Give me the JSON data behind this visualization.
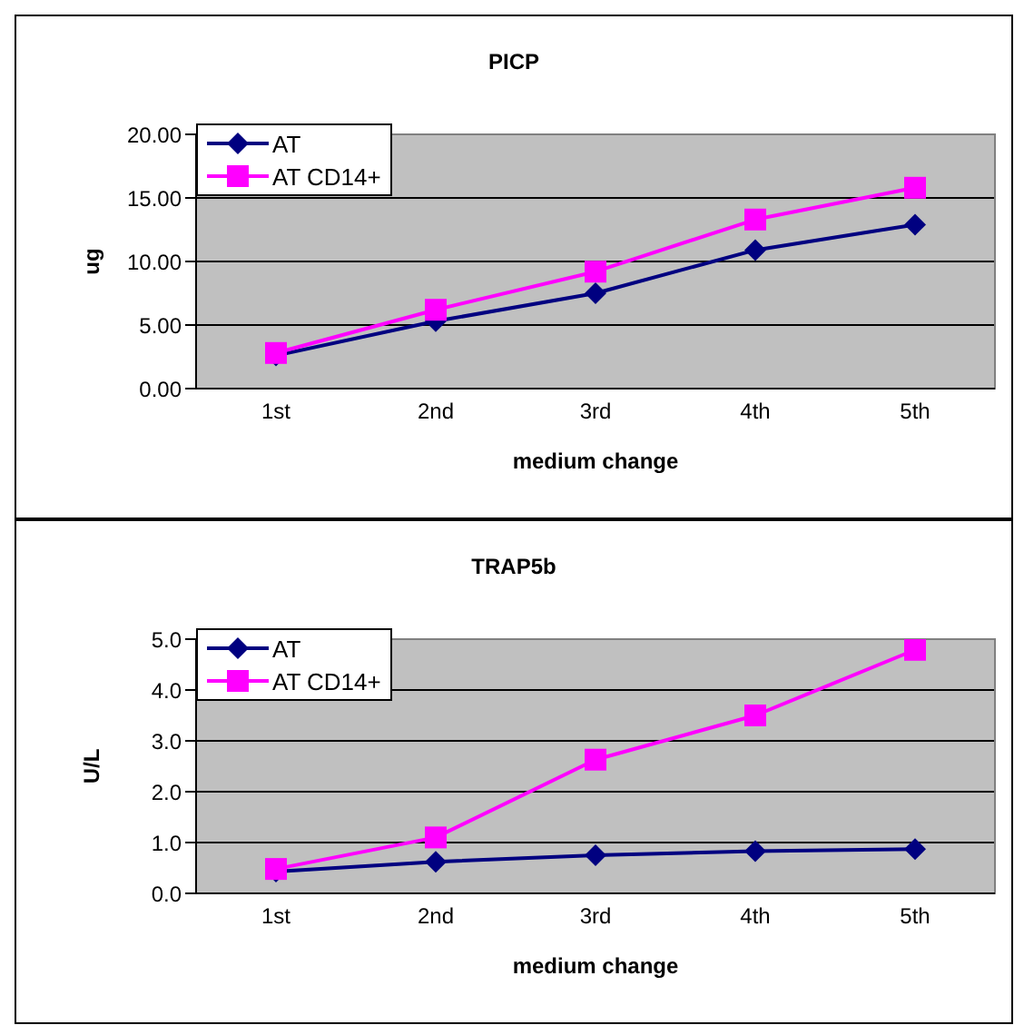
{
  "chart_data": [
    {
      "type": "line",
      "title": "PICP",
      "xlabel": "medium change",
      "ylabel": "ug",
      "categories": [
        "1st",
        "2nd",
        "3rd",
        "4th",
        "5th"
      ],
      "series": [
        {
          "name": "AT",
          "color": "#000080",
          "marker": "diamond",
          "values": [
            2.6,
            5.3,
            7.5,
            10.9,
            12.9
          ]
        },
        {
          "name": "AT CD14+",
          "color": "#ff00ff",
          "marker": "square",
          "values": [
            2.8,
            6.2,
            9.2,
            13.3,
            15.8
          ]
        }
      ],
      "ylim": [
        0,
        20
      ],
      "yticks": [
        {
          "value": 0,
          "label": "0.00"
        },
        {
          "value": 5,
          "label": "5.00"
        },
        {
          "value": 10,
          "label": "10.00"
        },
        {
          "value": 15,
          "label": "15.00"
        },
        {
          "value": 20,
          "label": "20.00"
        }
      ],
      "grid": "y",
      "legend": "top left"
    },
    {
      "type": "line",
      "title": "TRAP5b",
      "xlabel": "medium change",
      "ylabel": "U/L",
      "categories": [
        "1st",
        "2nd",
        "3rd",
        "4th",
        "5th"
      ],
      "series": [
        {
          "name": "AT",
          "color": "#000080",
          "marker": "diamond",
          "values": [
            0.43,
            0.62,
            0.75,
            0.83,
            0.87
          ]
        },
        {
          "name": "AT CD14+",
          "color": "#ff00ff",
          "marker": "square",
          "values": [
            0.48,
            1.1,
            2.63,
            3.5,
            4.79
          ]
        }
      ],
      "ylim": [
        0,
        5
      ],
      "yticks": [
        {
          "value": 0,
          "label": "0.0"
        },
        {
          "value": 1,
          "label": "1.0"
        },
        {
          "value": 2,
          "label": "2.0"
        },
        {
          "value": 3,
          "label": "3.0"
        },
        {
          "value": 4,
          "label": "4.0"
        },
        {
          "value": 5,
          "label": "5.0"
        }
      ],
      "grid": "y",
      "legend": "top left"
    }
  ]
}
